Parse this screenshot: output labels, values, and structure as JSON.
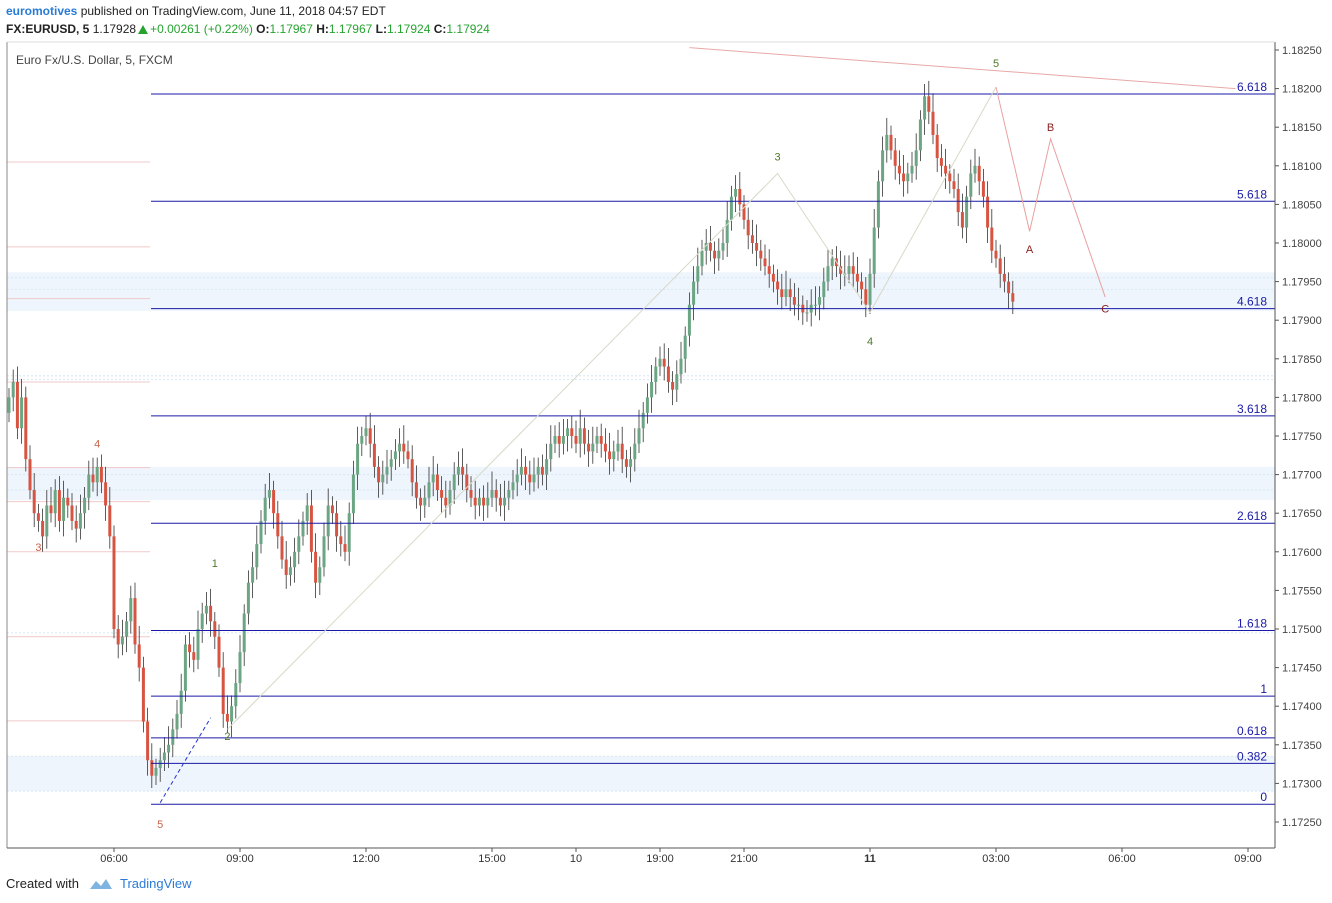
{
  "header": {
    "author": "euromotives",
    "published_text": "published on TradingView.com, June 11, 2018 04:57 EDT",
    "symbol": "FX:EURUSD, 5",
    "last": "1.17928",
    "change": "+0.00261 (+0.22%)",
    "o_label": "O:",
    "o_value": "1.17967",
    "h_label": "H:",
    "h_value": "1.17967",
    "l_label": "L:",
    "l_value": "1.17924",
    "c_label": "C:",
    "c_value": "1.17924"
  },
  "plot_title": "Euro Fx/U.S. Dollar, 5, FXCM",
  "footer": {
    "created_with": "Created with",
    "brand": "TradingView"
  },
  "colors": {
    "up": "#6ba583",
    "down": "#d75442",
    "fib": "#1a1aa8",
    "wave_red": "#c8644a",
    "wave_green": "#4d7a2a",
    "wave_dark": "#8a2020",
    "price_axis_text": "#444444"
  },
  "chart_data": {
    "type": "candlestick",
    "title": "Euro Fx/U.S. Dollar, 5, FXCM",
    "ylim": [
      1.172,
      1.1826
    ],
    "y_ticks": [
      "1.18250",
      "1.18200",
      "1.18150",
      "1.18100",
      "1.18050",
      "1.18000",
      "1.17950",
      "1.17900",
      "1.17850",
      "1.17800",
      "1.17750",
      "1.17700",
      "1.17650",
      "1.17600",
      "1.17550",
      "1.17500",
      "1.17450",
      "1.17400",
      "1.17350",
      "1.17300",
      "1.17250"
    ],
    "x_ticks": [
      {
        "label": "06:00",
        "idx": 25,
        "bold": false
      },
      {
        "label": "09:00",
        "idx": 55,
        "bold": false
      },
      {
        "label": "12:00",
        "idx": 85,
        "bold": false
      },
      {
        "label": "15:00",
        "idx": 115,
        "bold": false
      },
      {
        "label": "10",
        "idx": 135,
        "bold": false
      },
      {
        "label": "19:00",
        "idx": 155,
        "bold": false
      },
      {
        "label": "21:00",
        "idx": 175,
        "bold": false
      },
      {
        "label": "11",
        "idx": 205,
        "bold": true
      },
      {
        "label": "03:00",
        "idx": 235,
        "bold": false
      },
      {
        "label": "06:00",
        "idx": 265,
        "bold": false
      },
      {
        "label": "09:00",
        "idx": 295,
        "bold": false
      }
    ],
    "fib_levels": [
      {
        "label": "6.618",
        "price": 1.18193
      },
      {
        "label": "5.618",
        "price": 1.18054
      },
      {
        "label": "4.618",
        "price": 1.17915
      },
      {
        "label": "3.618",
        "price": 1.17776
      },
      {
        "label": "2.618",
        "price": 1.17637
      },
      {
        "label": "1.618",
        "price": 1.17498
      },
      {
        "label": "1",
        "price": 1.17413
      },
      {
        "label": "0.618",
        "price": 1.17359
      },
      {
        "label": "0.382",
        "price": 1.17326
      },
      {
        "label": "0",
        "price": 1.17273
      }
    ],
    "wave_labels": [
      {
        "text": "3",
        "idx": 7,
        "price": 1.17601,
        "color": "wave_red"
      },
      {
        "text": "4",
        "idx": 21,
        "price": 1.17735,
        "color": "wave_red"
      },
      {
        "text": "5",
        "idx": 36,
        "price": 1.17242,
        "color": "wave_red"
      },
      {
        "text": "1",
        "idx": 49,
        "price": 1.1758,
        "color": "wave_green"
      },
      {
        "text": "2",
        "idx": 52,
        "price": 1.17356,
        "color": "wave_green"
      },
      {
        "text": "3",
        "idx": 183,
        "price": 1.18107,
        "color": "wave_green"
      },
      {
        "text": "4",
        "idx": 205,
        "price": 1.17868,
        "color": "wave_green"
      },
      {
        "text": "5",
        "idx": 235,
        "price": 1.18228,
        "color": "wave_green"
      },
      {
        "text": "A",
        "idx": 243,
        "price": 1.17987,
        "color": "wave_dark"
      },
      {
        "text": "B",
        "idx": 248,
        "price": 1.18145,
        "color": "wave_dark"
      },
      {
        "text": "C",
        "idx": 261,
        "price": 1.1791,
        "color": "wave_dark"
      }
    ],
    "wave_paths": [
      {
        "color": "#d8d8c8",
        "points": [
          [
            52,
            1.1737
          ],
          [
            183,
            1.1809
          ],
          [
            205,
            1.1791
          ],
          [
            235,
            1.18202
          ]
        ]
      },
      {
        "color": "#e8a0a0",
        "points": [
          [
            235,
            1.18202
          ],
          [
            243,
            1.18015
          ],
          [
            248,
            1.18135
          ],
          [
            261,
            1.1793
          ]
        ]
      },
      {
        "color": "#e8a8a8",
        "points": [
          [
            162,
            1.18253
          ],
          [
            292,
            1.182
          ]
        ]
      }
    ],
    "dashed_line": {
      "points": [
        [
          36,
          1.17275
        ],
        [
          48,
          1.17385
        ]
      ]
    },
    "closes": [
      1.178,
      1.1782,
      1.1776,
      1.178,
      1.1772,
      1.1768,
      1.1765,
      1.1764,
      1.1762,
      1.1766,
      1.1765,
      1.1768,
      1.1764,
      1.1767,
      1.1766,
      1.1764,
      1.1763,
      1.1765,
      1.1767,
      1.177,
      1.1769,
      1.1771,
      1.1769,
      1.1766,
      1.1762,
      1.175,
      1.1748,
      1.1749,
      1.1751,
      1.1754,
      1.1748,
      1.1745,
      1.1738,
      1.1733,
      1.1731,
      1.1732,
      1.1733,
      1.1734,
      1.1735,
      1.1737,
      1.1739,
      1.1742,
      1.1748,
      1.1747,
      1.1746,
      1.175,
      1.1752,
      1.1753,
      1.1751,
      1.1749,
      1.1745,
      1.1739,
      1.1738,
      1.174,
      1.1743,
      1.1747,
      1.1752,
      1.1756,
      1.1758,
      1.1761,
      1.1764,
      1.1767,
      1.1768,
      1.1765,
      1.1762,
      1.1759,
      1.1757,
      1.1758,
      1.176,
      1.1762,
      1.1764,
      1.1766,
      1.176,
      1.1756,
      1.1758,
      1.1762,
      1.1766,
      1.1765,
      1.1762,
      1.1761,
      1.176,
      1.1765,
      1.177,
      1.1774,
      1.1775,
      1.1776,
      1.1774,
      1.1771,
      1.1769,
      1.177,
      1.1771,
      1.1772,
      1.1773,
      1.1774,
      1.1773,
      1.1772,
      1.1769,
      1.1767,
      1.1766,
      1.1767,
      1.1769,
      1.177,
      1.1768,
      1.1767,
      1.1766,
      1.1768,
      1.177,
      1.1771,
      1.177,
      1.1768,
      1.1767,
      1.1766,
      1.1767,
      1.1766,
      1.1767,
      1.1768,
      1.1767,
      1.1766,
      1.1767,
      1.1768,
      1.1769,
      1.177,
      1.1771,
      1.177,
      1.1769,
      1.177,
      1.1771,
      1.177,
      1.1772,
      1.1774,
      1.1775,
      1.1774,
      1.1775,
      1.1776,
      1.1775,
      1.1774,
      1.1776,
      1.1774,
      1.1773,
      1.1774,
      1.1775,
      1.1774,
      1.1773,
      1.1772,
      1.1773,
      1.1774,
      1.1772,
      1.1771,
      1.1772,
      1.1774,
      1.1776,
      1.1778,
      1.178,
      1.1782,
      1.1784,
      1.1785,
      1.1784,
      1.1782,
      1.1781,
      1.1783,
      1.1785,
      1.1788,
      1.1792,
      1.1795,
      1.1797,
      1.1799,
      1.18,
      1.1799,
      1.1798,
      1.1799,
      1.18,
      1.1803,
      1.1806,
      1.1807,
      1.1805,
      1.1803,
      1.1801,
      1.18,
      1.1799,
      1.1798,
      1.1797,
      1.1796,
      1.1795,
      1.1794,
      1.1793,
      1.1794,
      1.1793,
      1.1792,
      1.1792,
      1.1791,
      1.1791,
      1.1792,
      1.1792,
      1.1793,
      1.1795,
      1.1797,
      1.1798,
      1.1797,
      1.1796,
      1.1796,
      1.1797,
      1.1796,
      1.1795,
      1.1794,
      1.1792,
      1.1796,
      1.1802,
      1.1808,
      1.1812,
      1.1814,
      1.1812,
      1.181,
      1.1809,
      1.1808,
      1.1809,
      1.181,
      1.1812,
      1.1816,
      1.1819,
      1.1817,
      1.1814,
      1.1811,
      1.181,
      1.1809,
      1.1808,
      1.1807,
      1.1804,
      1.1802,
      1.1806,
      1.1809,
      1.181,
      1.1808,
      1.1806,
      1.1802,
      1.1799,
      1.1798,
      1.1796,
      1.1795,
      1.17935,
      1.17924
    ]
  }
}
